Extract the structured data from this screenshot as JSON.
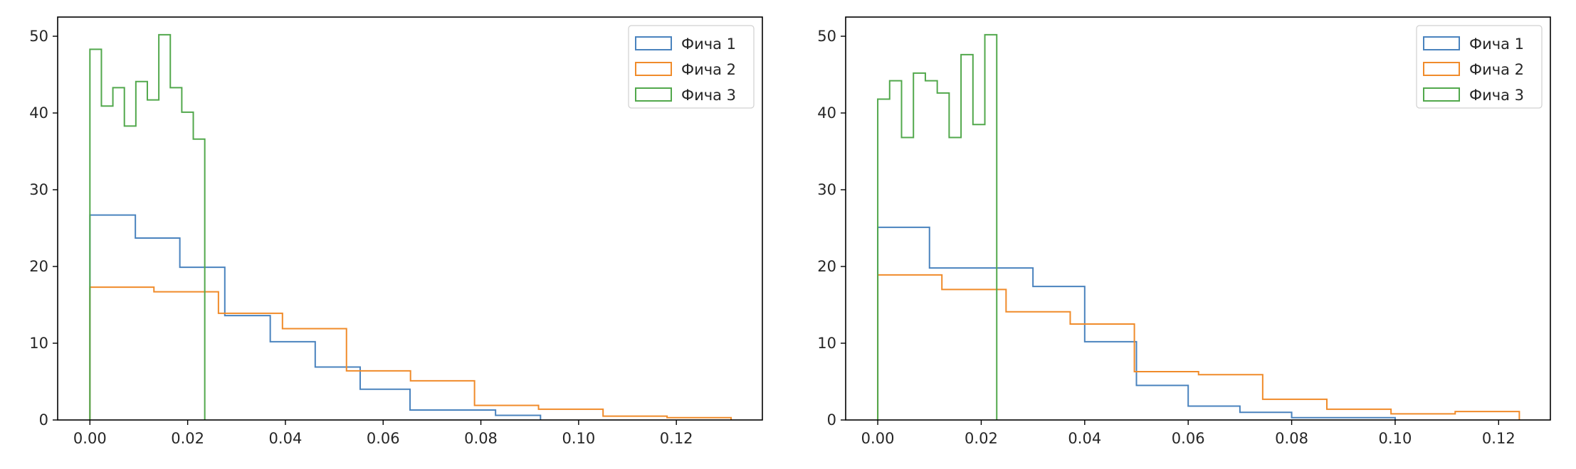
{
  "colors": {
    "Фича 1": "#4a83be",
    "Фича 2": "#f08b2a",
    "Фича 3": "#52a84c"
  },
  "chart_data": [
    {
      "type": "histogram-step",
      "xlim": [
        -0.0066,
        0.1376
      ],
      "ylim": [
        0,
        52.5
      ],
      "xticks": [
        0.0,
        0.02,
        0.04,
        0.06,
        0.08,
        0.1,
        0.12
      ],
      "xtick_labels": [
        "0.00",
        "0.02",
        "0.04",
        "0.06",
        "0.08",
        "0.10",
        "0.12"
      ],
      "yticks": [
        0,
        10,
        20,
        30,
        40,
        50
      ],
      "ytick_labels": [
        "0",
        "10",
        "20",
        "30",
        "40",
        "50"
      ],
      "legend": {
        "position": "top-right",
        "entries": [
          "Фича 1",
          "Фича 2",
          "Фича 3"
        ]
      },
      "series": [
        {
          "name": "Фича 1",
          "edges": [
            0.0,
            0.0093,
            0.0184,
            0.0276,
            0.0369,
            0.0461,
            0.0553,
            0.0655,
            0.074,
            0.083,
            0.0922
          ],
          "values": [
            26.7,
            23.7,
            19.9,
            13.6,
            10.2,
            6.9,
            4.0,
            1.3,
            1.3,
            0.6
          ]
        },
        {
          "name": "Фича 2",
          "edges": [
            0.0,
            0.0131,
            0.0263,
            0.0394,
            0.0525,
            0.0656,
            0.0787,
            0.0918,
            0.105,
            0.1181,
            0.1312
          ],
          "values": [
            17.3,
            16.7,
            13.9,
            11.9,
            6.4,
            5.1,
            1.9,
            1.4,
            0.5,
            0.3
          ]
        },
        {
          "name": "Фича 3",
          "edges": [
            0.0,
            0.00235,
            0.0047,
            0.00705,
            0.0094,
            0.01175,
            0.0141,
            0.01645,
            0.0188,
            0.02115,
            0.0235
          ],
          "values": [
            48.3,
            40.9,
            43.3,
            38.3,
            44.1,
            41.7,
            50.2,
            43.3,
            40.1,
            36.6
          ]
        }
      ]
    },
    {
      "type": "histogram-step",
      "xlim": [
        -0.0062,
        0.13
      ],
      "ylim": [
        0,
        52.5
      ],
      "xticks": [
        0.0,
        0.02,
        0.04,
        0.06,
        0.08,
        0.1,
        0.12
      ],
      "xtick_labels": [
        "0.00",
        "0.02",
        "0.04",
        "0.06",
        "0.08",
        "0.10",
        "0.12"
      ],
      "yticks": [
        0,
        10,
        20,
        30,
        40,
        50
      ],
      "ytick_labels": [
        "0",
        "10",
        "20",
        "30",
        "40",
        "50"
      ],
      "legend": {
        "position": "top-right",
        "entries": [
          "Фича 1",
          "Фича 2",
          "Фича 3"
        ]
      },
      "series": [
        {
          "name": "Фича 1",
          "edges": [
            0.0,
            0.01,
            0.02,
            0.03,
            0.04,
            0.05,
            0.06,
            0.07,
            0.08,
            0.09,
            0.1
          ],
          "values": [
            25.1,
            19.8,
            19.8,
            17.4,
            10.2,
            4.5,
            1.8,
            1.0,
            0.3,
            0.3
          ]
        },
        {
          "name": "Фича 2",
          "edges": [
            0.0,
            0.0124,
            0.0248,
            0.0372,
            0.0496,
            0.062,
            0.0744,
            0.0868,
            0.0992,
            0.1116,
            0.124
          ],
          "values": [
            18.9,
            17.0,
            14.1,
            12.5,
            6.3,
            5.9,
            2.7,
            1.4,
            0.8,
            1.1
          ]
        },
        {
          "name": "Фича 3",
          "edges": [
            0.0,
            0.0023,
            0.0046,
            0.0069,
            0.0092,
            0.0115,
            0.0138,
            0.0161,
            0.0184,
            0.0207,
            0.023
          ],
          "values": [
            41.8,
            44.2,
            36.8,
            45.2,
            44.2,
            42.6,
            36.8,
            47.6,
            38.5,
            50.2
          ]
        }
      ]
    }
  ]
}
